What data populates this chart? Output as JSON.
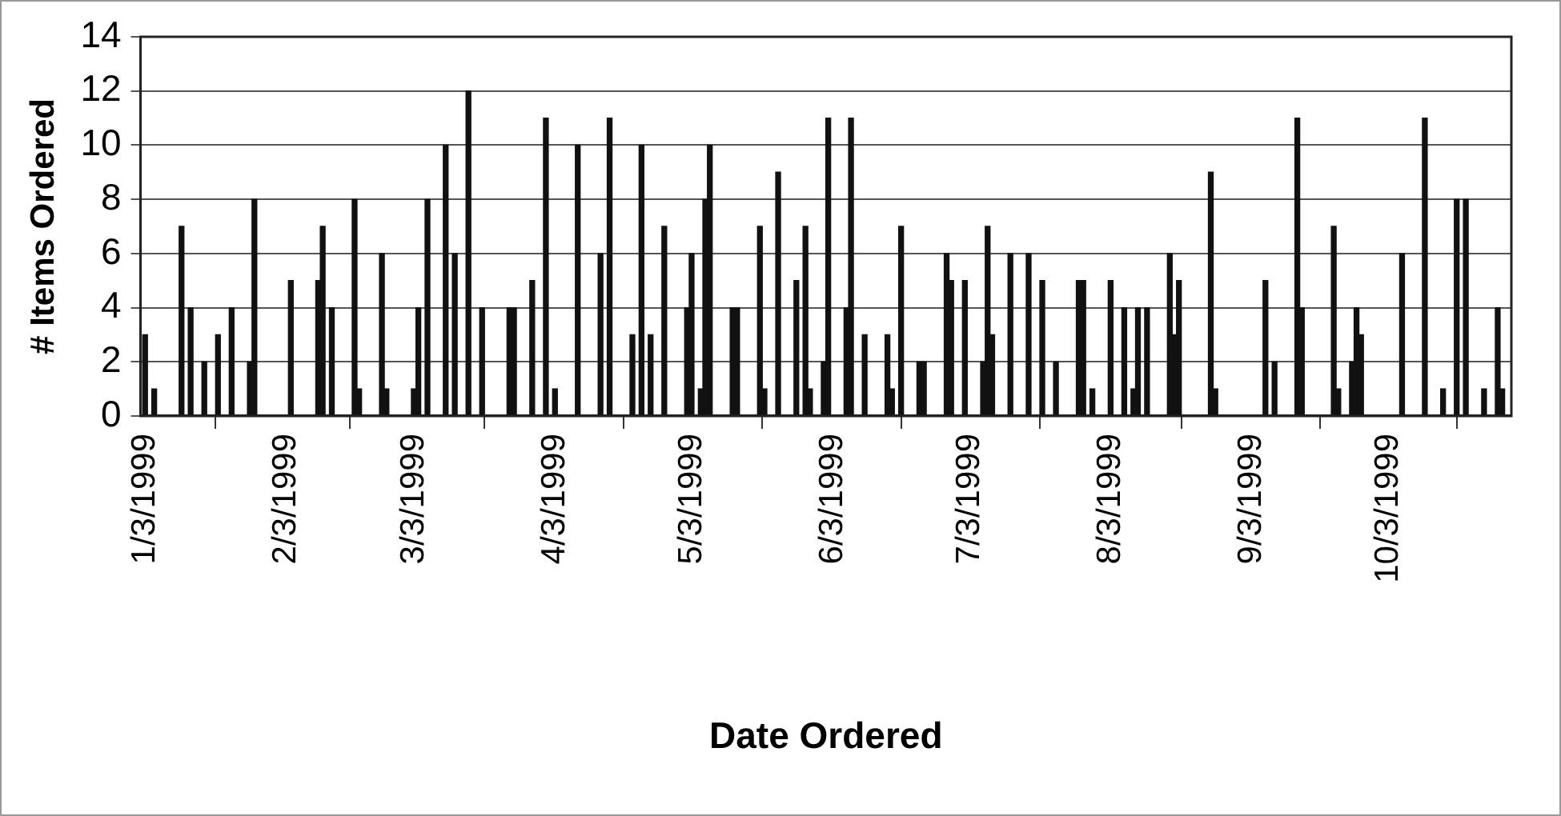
{
  "chart_data": {
    "type": "bar",
    "xlabel": "Date Ordered",
    "ylabel": "# Items Ordered",
    "x": [
      "1999-01-03",
      "1999-01-05",
      "1999-01-11",
      "1999-01-13",
      "1999-01-16",
      "1999-01-19",
      "1999-01-22",
      "1999-01-26",
      "1999-01-27",
      "1999-02-04",
      "1999-02-10",
      "1999-02-11",
      "1999-02-13",
      "1999-02-18",
      "1999-02-19",
      "1999-02-24",
      "1999-02-25",
      "1999-03-03",
      "1999-03-04",
      "1999-03-06",
      "1999-03-10",
      "1999-03-12",
      "1999-03-15",
      "1999-03-18",
      "1999-03-24",
      "1999-03-25",
      "1999-03-29",
      "1999-04-01",
      "1999-04-03",
      "1999-04-08",
      "1999-04-13",
      "1999-04-15",
      "1999-04-20",
      "1999-04-22",
      "1999-04-24",
      "1999-04-27",
      "1999-05-02",
      "1999-05-03",
      "1999-05-05",
      "1999-05-06",
      "1999-05-07",
      "1999-05-12",
      "1999-05-13",
      "1999-05-18",
      "1999-05-19",
      "1999-05-22",
      "1999-05-26",
      "1999-05-28",
      "1999-05-29",
      "1999-06-01",
      "1999-06-02",
      "1999-06-06",
      "1999-06-07",
      "1999-06-10",
      "1999-06-15",
      "1999-06-16",
      "1999-06-18",
      "1999-06-22",
      "1999-06-23",
      "1999-06-28",
      "1999-06-29",
      "1999-07-02",
      "1999-07-06",
      "1999-07-07",
      "1999-07-08",
      "1999-07-12",
      "1999-07-16",
      "1999-07-19",
      "1999-07-22",
      "1999-07-27",
      "1999-07-28",
      "1999-07-30",
      "1999-08-03",
      "1999-08-06",
      "1999-08-08",
      "1999-08-09",
      "1999-08-11",
      "1999-08-16",
      "1999-08-17",
      "1999-08-18",
      "1999-08-25",
      "1999-08-26",
      "1999-09-06",
      "1999-09-08",
      "1999-09-13",
      "1999-09-14",
      "1999-09-21",
      "1999-09-22",
      "1999-09-25",
      "1999-09-26",
      "1999-09-27",
      "1999-10-06",
      "1999-10-11",
      "1999-10-15",
      "1999-10-18",
      "1999-10-20",
      "1999-10-24",
      "1999-10-27",
      "1999-10-28"
    ],
    "values": [
      3,
      1,
      7,
      4,
      2,
      3,
      4,
      2,
      8,
      5,
      5,
      7,
      4,
      8,
      1,
      6,
      1,
      1,
      4,
      8,
      10,
      6,
      12,
      4,
      4,
      4,
      5,
      11,
      1,
      10,
      6,
      11,
      3,
      10,
      3,
      7,
      4,
      6,
      1,
      8,
      10,
      4,
      4,
      7,
      1,
      9,
      5,
      7,
      1,
      2,
      11,
      4,
      11,
      3,
      3,
      1,
      7,
      2,
      2,
      6,
      5,
      5,
      2,
      7,
      3,
      6,
      6,
      5,
      2,
      5,
      5,
      1,
      5,
      4,
      1,
      4,
      4,
      6,
      3,
      5,
      9,
      1,
      5,
      2,
      11,
      4,
      7,
      1,
      2,
      4,
      3,
      6,
      11,
      1,
      8,
      8,
      1,
      4,
      1
    ],
    "color": "#111111",
    "xlim": [
      "1999-01-02",
      "1999-10-30"
    ],
    "xticks": [
      {
        "value": "1999-01-03",
        "label": "1/3/1999"
      },
      {
        "value": "1999-02-03",
        "label": "2/3/1999"
      },
      {
        "value": "1999-03-03",
        "label": "3/3/1999"
      },
      {
        "value": "1999-04-03",
        "label": "4/3/1999"
      },
      {
        "value": "1999-05-03",
        "label": "5/3/1999"
      },
      {
        "value": "1999-06-03",
        "label": "6/3/1999"
      },
      {
        "value": "1999-07-03",
        "label": "7/3/1999"
      },
      {
        "value": "1999-08-03",
        "label": "8/3/1999"
      },
      {
        "value": "1999-09-03",
        "label": "9/3/1999"
      },
      {
        "value": "1999-10-03",
        "label": "10/3/1999"
      }
    ],
    "ylim": [
      0,
      14
    ],
    "yticks": [
      0,
      2,
      4,
      6,
      8,
      10,
      12,
      14
    ],
    "grid": "y",
    "legend": false
  }
}
